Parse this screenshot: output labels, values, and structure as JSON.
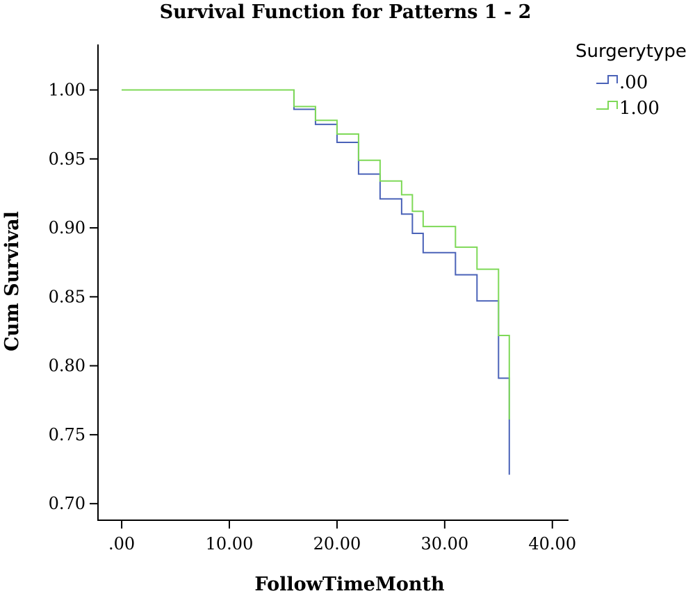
{
  "chart_data": {
    "type": "line",
    "step": true,
    "title": "Survival Function for Patterns 1 - 2",
    "xlabel": "FollowTimeMonth",
    "ylabel": "Cum Survival",
    "xlim": [
      -2.2,
      41.5
    ],
    "ylim": [
      0.688,
      1.033
    ],
    "xticks": [
      0,
      10,
      20,
      30,
      40
    ],
    "xtick_labels": [
      ".00",
      "10.00",
      "20.00",
      "30.00",
      "40.00"
    ],
    "yticks": [
      0.7,
      0.75,
      0.8,
      0.85,
      0.9,
      0.95,
      1.0
    ],
    "ytick_labels": [
      "0.70",
      "0.75",
      "0.80",
      "0.85",
      "0.90",
      "0.95",
      "1.00"
    ],
    "legend_title": "Surgerytype",
    "legend_position": "top-right",
    "grid": false,
    "series": [
      {
        "name": ".00",
        "color": "#4a62b8",
        "x": [
          0,
          16,
          18,
          20,
          22,
          24,
          26,
          27,
          28,
          31,
          33,
          35,
          36,
          36
        ],
        "y": [
          1.0,
          0.986,
          0.975,
          0.962,
          0.939,
          0.921,
          0.91,
          0.896,
          0.882,
          0.866,
          0.847,
          0.791,
          0.76,
          0.721
        ],
        "x_end": 36
      },
      {
        "name": "1.00",
        "color": "#7ed957",
        "x": [
          0,
          16,
          18,
          20,
          22,
          24,
          26,
          27,
          28,
          31,
          33,
          35,
          36
        ],
        "y": [
          1.0,
          0.988,
          0.978,
          0.968,
          0.949,
          0.934,
          0.924,
          0.912,
          0.901,
          0.886,
          0.87,
          0.822,
          0.761
        ],
        "x_end": 36
      }
    ]
  }
}
